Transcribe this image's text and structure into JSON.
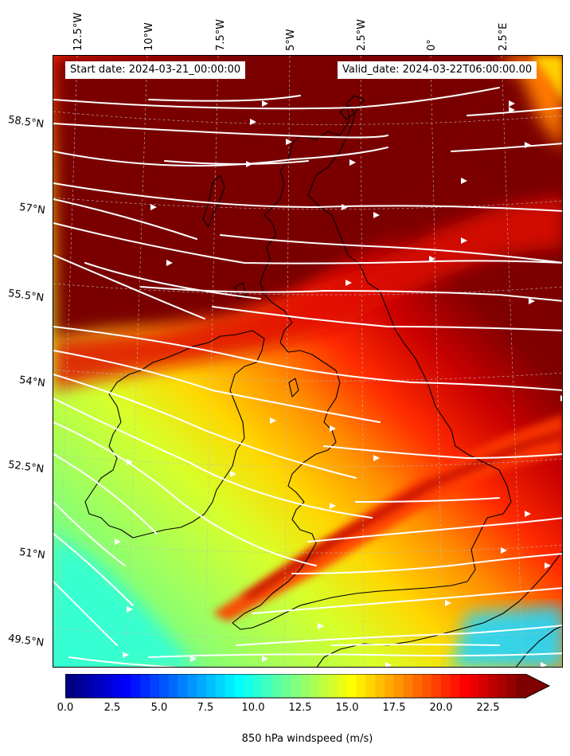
{
  "header": {
    "start_date": "Start date: 2024-03-21_00:00:00",
    "valid_date": "Valid_date: 2024-03-22T06:00:00.00"
  },
  "axes": {
    "lon_labels": [
      "12.5°W",
      "10°W",
      "7.5°W",
      "5°W",
      "2.5°W",
      "0°",
      "2.5°E"
    ],
    "lat_labels": [
      "58.5°N",
      "57°N",
      "55.5°N",
      "54°N",
      "52.5°N",
      "51°N",
      "49.5°N"
    ]
  },
  "colorbar": {
    "label": "850 hPa windspeed (m/s)",
    "ticks": [
      "0.0",
      "2.5",
      "5.0",
      "7.5",
      "10.0",
      "12.5",
      "15.0",
      "17.5",
      "20.0",
      "22.5"
    ],
    "range": [
      0,
      25
    ],
    "extend": "max",
    "colormap": "jet"
  },
  "colors": {
    "coastline": "#000000",
    "streamlines": "#ffffff",
    "gridlines": "#bbbbbb"
  }
}
